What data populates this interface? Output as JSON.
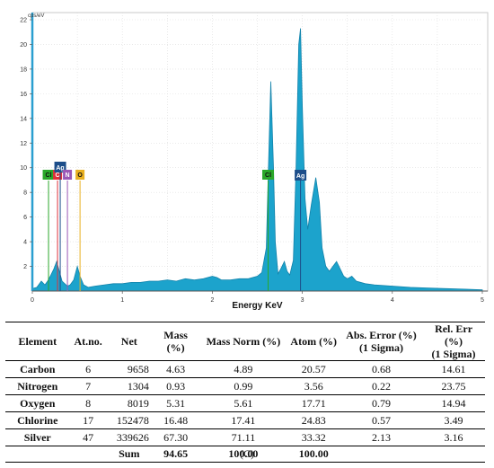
{
  "chart_data": {
    "type": "line",
    "xlabel": "Energy KeV",
    "ylabel": "cps/eV",
    "xlim": [
      0,
      5
    ],
    "ylim": [
      0,
      22
    ],
    "x_ticks": [
      0,
      1,
      2,
      3,
      4,
      5
    ],
    "y_ticks": [
      2,
      4,
      6,
      8,
      10,
      12,
      14,
      16,
      18,
      20,
      22
    ],
    "grid": true,
    "fill_color": "#1ca3cc",
    "line_color": "#1282aa",
    "spectrum": {
      "x": [
        0.0,
        0.05,
        0.1,
        0.14,
        0.17,
        0.2,
        0.24,
        0.27,
        0.3,
        0.33,
        0.36,
        0.39,
        0.42,
        0.46,
        0.5,
        0.53,
        0.57,
        0.62,
        0.7,
        0.8,
        0.9,
        1.0,
        1.1,
        1.2,
        1.3,
        1.4,
        1.5,
        1.6,
        1.7,
        1.8,
        1.9,
        2.0,
        2.05,
        2.1,
        2.2,
        2.3,
        2.4,
        2.5,
        2.55,
        2.6,
        2.62,
        2.65,
        2.68,
        2.7,
        2.73,
        2.76,
        2.8,
        2.83,
        2.86,
        2.9,
        2.93,
        2.96,
        2.98,
        3.0,
        3.03,
        3.06,
        3.1,
        3.15,
        3.19,
        3.22,
        3.26,
        3.3,
        3.34,
        3.38,
        3.42,
        3.46,
        3.5,
        3.55,
        3.6,
        3.7,
        3.8,
        4.0,
        4.2,
        4.4,
        4.6,
        4.8,
        5.0
      ],
      "y": [
        0.2,
        0.3,
        0.8,
        0.5,
        0.8,
        1.2,
        1.8,
        2.4,
        1.6,
        0.8,
        0.6,
        0.4,
        0.5,
        0.9,
        2.0,
        1.2,
        0.5,
        0.3,
        0.4,
        0.5,
        0.6,
        0.6,
        0.7,
        0.7,
        0.8,
        0.8,
        0.9,
        0.8,
        1.0,
        0.9,
        1.0,
        1.2,
        1.1,
        0.9,
        0.9,
        1.0,
        1.0,
        1.2,
        1.5,
        3.5,
        9.0,
        17.0,
        10.0,
        4.0,
        1.4,
        1.8,
        2.4,
        1.6,
        1.3,
        2.5,
        10.0,
        20.0,
        21.3,
        15.0,
        7.5,
        5.0,
        7.0,
        9.2,
        7.2,
        3.5,
        2.0,
        1.6,
        2.0,
        2.4,
        1.8,
        1.2,
        1.0,
        1.2,
        0.8,
        0.6,
        0.5,
        0.4,
        0.3,
        0.25,
        0.2,
        0.15,
        0.1
      ]
    },
    "element_markers": [
      {
        "label": "Cl",
        "x": 0.18,
        "color": "#2aa82a"
      },
      {
        "label": "C",
        "x": 0.28,
        "color": "#e0303a"
      },
      {
        "label": "Ag",
        "x": 0.31,
        "color": "#1d4e8a"
      },
      {
        "label": "N",
        "x": 0.39,
        "color": "#9b59b6"
      },
      {
        "label": "O",
        "x": 0.53,
        "color": "#e8b020"
      },
      {
        "label": "Cl",
        "x": 2.62,
        "color": "#2aa82a"
      },
      {
        "label": "Ag",
        "x": 2.98,
        "color": "#1d4e8a"
      }
    ]
  },
  "table": {
    "headers": {
      "element": "Element",
      "atno": "At.no.",
      "net": "Net",
      "mass": "Mass (%)",
      "mass_norm": "Mass Norm (%)",
      "atom": "Atom (%)",
      "abs_err_1": "Abs. Error (%)",
      "abs_err_2": "(1 Sigma)",
      "rel_err_1": "Rel. Err (%)",
      "rel_err_2": "(1 Sigma)"
    },
    "rows": [
      {
        "element": "Carbon",
        "atno": "6",
        "net": "9658",
        "mass": "4.63",
        "mass_norm": "4.89",
        "atom": "20.57",
        "abs_err": "0.68",
        "rel_err": "14.61"
      },
      {
        "element": "Nitrogen",
        "atno": "7",
        "net": "1304",
        "mass": "0.93",
        "mass_norm": "0.99",
        "atom": "3.56",
        "abs_err": "0.22",
        "rel_err": "23.75"
      },
      {
        "element": "Oxygen",
        "atno": "8",
        "net": "8019",
        "mass": "5.31",
        "mass_norm": "5.61",
        "atom": "17.71",
        "abs_err": "0.79",
        "rel_err": "14.94"
      },
      {
        "element": "Chlorine",
        "atno": "17",
        "net": "152478",
        "mass": "16.48",
        "mass_norm": "17.41",
        "atom": "24.83",
        "abs_err": "0.57",
        "rel_err": "3.49"
      },
      {
        "element": "Silver",
        "atno": "47",
        "net": "339626",
        "mass": "67.30",
        "mass_norm": "71.11",
        "atom": "33.32",
        "abs_err": "2.13",
        "rel_err": "3.16"
      }
    ],
    "sum": {
      "label": "Sum",
      "mass": "94.65",
      "mass_norm": "100.00",
      "atom": "100.00"
    }
  },
  "caption": "(C)"
}
